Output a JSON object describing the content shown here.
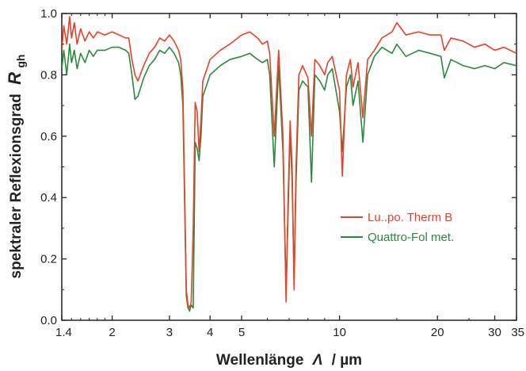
{
  "chart_data": {
    "type": "line",
    "x_scale": "log",
    "xlim": [
      1.4,
      35
    ],
    "ylim": [
      0.0,
      1.0
    ],
    "x_ticks": [
      1.4,
      2,
      3,
      4,
      5,
      10,
      20,
      30,
      35
    ],
    "x_tick_labels": [
      "1.4",
      "2",
      "3",
      "4",
      "5",
      "10",
      "20",
      "30",
      "35"
    ],
    "y_ticks": [
      0.0,
      0.2,
      0.4,
      0.6,
      0.8,
      1.0
    ],
    "y_tick_labels": [
      "0.0",
      "0.2",
      "0.4",
      "0.6",
      "0.8",
      "1.0"
    ],
    "xlabel_text": "Wellenlänge",
    "xlabel_symbol": "Λ",
    "xlabel_unit": "/ µm",
    "ylabel_text": "spektraler Reflexionsgrad",
    "ylabel_symbol": "R",
    "ylabel_sub": "gh",
    "legend_position": "right-center",
    "grid": false,
    "series": [
      {
        "name": "Lu..po. Therm B",
        "color": "#e8402a",
        "points": [
          [
            1.4,
            0.88
          ],
          [
            1.42,
            0.96
          ],
          [
            1.45,
            0.9
          ],
          [
            1.48,
            0.99
          ],
          [
            1.5,
            0.92
          ],
          [
            1.53,
            0.97
          ],
          [
            1.56,
            0.9
          ],
          [
            1.6,
            0.95
          ],
          [
            1.65,
            0.91
          ],
          [
            1.7,
            0.94
          ],
          [
            1.75,
            0.92
          ],
          [
            1.8,
            0.94
          ],
          [
            1.9,
            0.93
          ],
          [
            2.0,
            0.94
          ],
          [
            2.1,
            0.93
          ],
          [
            2.2,
            0.92
          ],
          [
            2.25,
            0.92
          ],
          [
            2.3,
            0.85
          ],
          [
            2.35,
            0.8
          ],
          [
            2.4,
            0.78
          ],
          [
            2.5,
            0.83
          ],
          [
            2.6,
            0.87
          ],
          [
            2.7,
            0.89
          ],
          [
            2.8,
            0.92
          ],
          [
            2.9,
            0.91
          ],
          [
            3.0,
            0.93
          ],
          [
            3.1,
            0.91
          ],
          [
            3.2,
            0.88
          ],
          [
            3.25,
            0.85
          ],
          [
            3.3,
            0.75
          ],
          [
            3.38,
            0.1
          ],
          [
            3.42,
            0.05
          ],
          [
            3.46,
            0.04
          ],
          [
            3.5,
            0.06
          ],
          [
            3.55,
            0.3
          ],
          [
            3.6,
            0.71
          ],
          [
            3.65,
            0.68
          ],
          [
            3.7,
            0.55
          ],
          [
            3.75,
            0.65
          ],
          [
            3.8,
            0.78
          ],
          [
            4.0,
            0.85
          ],
          [
            4.3,
            0.88
          ],
          [
            4.6,
            0.9
          ],
          [
            5.0,
            0.93
          ],
          [
            5.3,
            0.94
          ],
          [
            5.6,
            0.92
          ],
          [
            5.8,
            0.9
          ],
          [
            6.0,
            0.91
          ],
          [
            6.1,
            0.87
          ],
          [
            6.3,
            0.6
          ],
          [
            6.5,
            0.88
          ],
          [
            6.7,
            0.6
          ],
          [
            6.85,
            0.06
          ],
          [
            6.95,
            0.4
          ],
          [
            7.05,
            0.65
          ],
          [
            7.15,
            0.5
          ],
          [
            7.25,
            0.1
          ],
          [
            7.35,
            0.5
          ],
          [
            7.5,
            0.8
          ],
          [
            7.7,
            0.83
          ],
          [
            8.0,
            0.79
          ],
          [
            8.2,
            0.6
          ],
          [
            8.4,
            0.85
          ],
          [
            8.7,
            0.83
          ],
          [
            9.0,
            0.8
          ],
          [
            9.2,
            0.84
          ],
          [
            9.5,
            0.86
          ],
          [
            10.0,
            0.75
          ],
          [
            10.2,
            0.47
          ],
          [
            10.5,
            0.8
          ],
          [
            10.8,
            0.85
          ],
          [
            11.0,
            0.76
          ],
          [
            11.4,
            0.84
          ],
          [
            11.8,
            0.66
          ],
          [
            12.2,
            0.85
          ],
          [
            12.8,
            0.88
          ],
          [
            13.5,
            0.92
          ],
          [
            14.5,
            0.94
          ],
          [
            15.0,
            0.97
          ],
          [
            16.0,
            0.93
          ],
          [
            17.5,
            0.94
          ],
          [
            19.0,
            0.93
          ],
          [
            20.5,
            0.93
          ],
          [
            21.0,
            0.88
          ],
          [
            22.0,
            0.92
          ],
          [
            24.0,
            0.91
          ],
          [
            26.0,
            0.89
          ],
          [
            28.0,
            0.9
          ],
          [
            30.0,
            0.88
          ],
          [
            32.0,
            0.89
          ],
          [
            35.0,
            0.87
          ]
        ]
      },
      {
        "name": "Quattro-Fol met.",
        "color": "#2a8a3a",
        "points": [
          [
            1.4,
            0.82
          ],
          [
            1.42,
            0.88
          ],
          [
            1.45,
            0.8
          ],
          [
            1.48,
            0.9
          ],
          [
            1.5,
            0.84
          ],
          [
            1.53,
            0.88
          ],
          [
            1.56,
            0.82
          ],
          [
            1.6,
            0.87
          ],
          [
            1.65,
            0.84
          ],
          [
            1.7,
            0.88
          ],
          [
            1.75,
            0.86
          ],
          [
            1.8,
            0.88
          ],
          [
            1.9,
            0.88
          ],
          [
            2.0,
            0.89
          ],
          [
            2.1,
            0.89
          ],
          [
            2.2,
            0.88
          ],
          [
            2.25,
            0.87
          ],
          [
            2.3,
            0.8
          ],
          [
            2.35,
            0.72
          ],
          [
            2.4,
            0.73
          ],
          [
            2.5,
            0.79
          ],
          [
            2.6,
            0.83
          ],
          [
            2.7,
            0.85
          ],
          [
            2.8,
            0.88
          ],
          [
            2.9,
            0.87
          ],
          [
            3.0,
            0.89
          ],
          [
            3.1,
            0.87
          ],
          [
            3.2,
            0.84
          ],
          [
            3.25,
            0.8
          ],
          [
            3.3,
            0.7
          ],
          [
            3.38,
            0.08
          ],
          [
            3.42,
            0.04
          ],
          [
            3.46,
            0.03
          ],
          [
            3.5,
            0.05
          ],
          [
            3.55,
            0.04
          ],
          [
            3.6,
            0.58
          ],
          [
            3.65,
            0.56
          ],
          [
            3.7,
            0.52
          ],
          [
            3.75,
            0.6
          ],
          [
            3.8,
            0.73
          ],
          [
            4.0,
            0.8
          ],
          [
            4.3,
            0.83
          ],
          [
            4.6,
            0.85
          ],
          [
            5.0,
            0.86
          ],
          [
            5.3,
            0.87
          ],
          [
            5.6,
            0.85
          ],
          [
            5.8,
            0.84
          ],
          [
            6.0,
            0.85
          ],
          [
            6.1,
            0.8
          ],
          [
            6.3,
            0.5
          ],
          [
            6.5,
            0.83
          ],
          [
            6.7,
            0.55
          ],
          [
            6.85,
            0.1
          ],
          [
            6.95,
            0.35
          ],
          [
            7.05,
            0.62
          ],
          [
            7.15,
            0.45
          ],
          [
            7.25,
            0.13
          ],
          [
            7.35,
            0.45
          ],
          [
            7.5,
            0.75
          ],
          [
            7.7,
            0.78
          ],
          [
            8.0,
            0.76
          ],
          [
            8.2,
            0.45
          ],
          [
            8.4,
            0.8
          ],
          [
            8.7,
            0.78
          ],
          [
            9.0,
            0.75
          ],
          [
            9.2,
            0.8
          ],
          [
            9.5,
            0.82
          ],
          [
            10.0,
            0.68
          ],
          [
            10.2,
            0.55
          ],
          [
            10.5,
            0.76
          ],
          [
            10.8,
            0.8
          ],
          [
            11.0,
            0.7
          ],
          [
            11.4,
            0.78
          ],
          [
            11.8,
            0.58
          ],
          [
            12.2,
            0.8
          ],
          [
            12.8,
            0.86
          ],
          [
            13.5,
            0.89
          ],
          [
            14.5,
            0.87
          ],
          [
            15.0,
            0.9
          ],
          [
            16.0,
            0.86
          ],
          [
            17.5,
            0.88
          ],
          [
            19.0,
            0.87
          ],
          [
            20.5,
            0.86
          ],
          [
            21.0,
            0.79
          ],
          [
            22.0,
            0.85
          ],
          [
            24.0,
            0.83
          ],
          [
            26.0,
            0.82
          ],
          [
            28.0,
            0.83
          ],
          [
            30.0,
            0.82
          ],
          [
            32.0,
            0.84
          ],
          [
            35.0,
            0.83
          ]
        ]
      }
    ]
  }
}
